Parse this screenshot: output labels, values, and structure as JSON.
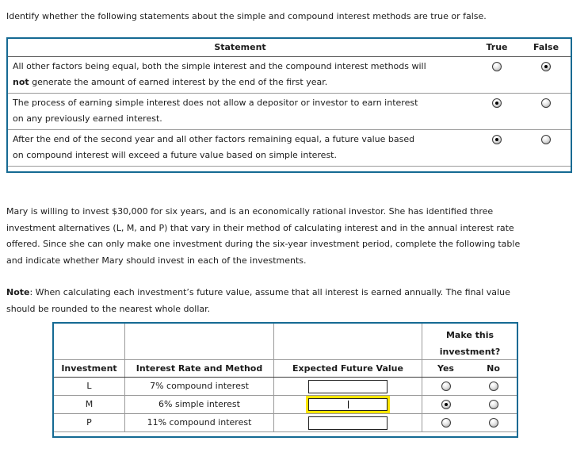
{
  "intro": "Identify whether the following statements about the simple and compound interest methods are true or false.",
  "colors": {
    "table_border": "#156a93",
    "focus_highlight": "#ffe600",
    "row_divider": "#9a9a9a"
  },
  "tf_table": {
    "headers": {
      "statement": "Statement",
      "true_label": "True",
      "false_label": "False"
    },
    "rows": [
      {
        "line1": "All other factors being equal, both the simple interest and the compound interest methods will",
        "line2_bold": "not",
        "line2_rest": " generate the amount of earned interest by the end of the first year.",
        "selected": "false"
      },
      {
        "line1": "The process of earning simple interest does not allow a depositor or investor to earn interest",
        "line2_bold": "",
        "line2_rest": "on any previously earned interest.",
        "selected": "true"
      },
      {
        "line1": "After the end of the second year and all other factors remaining equal, a future value based",
        "line2_bold": "",
        "line2_rest": "on compound interest will exceed a future value based on simple interest.",
        "selected": "true"
      }
    ]
  },
  "scenario": {
    "lines": [
      "Mary is willing to invest $30,000 for six years, and is an economically rational investor. She has identified three",
      "investment alternatives (L, M, and P) that vary in their method of calculating interest and in the annual interest rate",
      "offered. Since she can only make one investment during the six-year investment period, complete the following table",
      "and indicate whether Mary should invest in each of the investments."
    ]
  },
  "note": {
    "label": "Note",
    "line1_rest": ": When calculating each investment’s future value, assume that all interest is earned annually. The final value",
    "line2": "should be rounded to the nearest whole dollar."
  },
  "inv_table": {
    "headers": {
      "investment": "Investment",
      "rate": "Interest Rate and Method",
      "future_value": "Expected Future Value",
      "make_line1": "Make this",
      "make_line2": "investment?",
      "yes": "Yes",
      "no": "No"
    },
    "rows": [
      {
        "investment": "L",
        "rate": "7% compound interest",
        "value": "",
        "choice": "none",
        "focused": false
      },
      {
        "investment": "M",
        "rate": "6% simple interest",
        "value": "",
        "choice": "yes",
        "focused": true
      },
      {
        "investment": "P",
        "rate": "11% compound interest",
        "value": "",
        "choice": "none",
        "focused": false
      }
    ]
  }
}
